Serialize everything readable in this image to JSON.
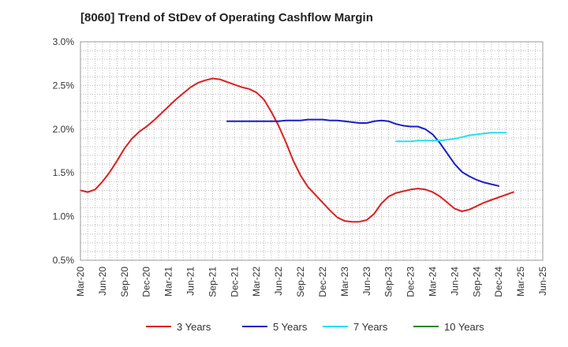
{
  "chart_data": {
    "type": "line",
    "title": "[8060]  Trend of StDev of Operating Cashflow Margin",
    "xlabel": "",
    "ylabel": "",
    "ylim": [
      0.5,
      3.0
    ],
    "y_ticks": [
      0.5,
      1.0,
      1.5,
      2.0,
      2.5,
      3.0
    ],
    "y_tick_labels": [
      "0.5%",
      "1.0%",
      "1.5%",
      "2.0%",
      "2.5%",
      "3.0%"
    ],
    "x_tick_labels": [
      "Mar-20",
      "Jun-20",
      "Sep-20",
      "Dec-20",
      "Mar-21",
      "Jun-21",
      "Sep-21",
      "Dec-21",
      "Mar-22",
      "Jun-22",
      "Sep-22",
      "Dec-22",
      "Mar-23",
      "Jun-23",
      "Sep-23",
      "Dec-23",
      "Mar-24",
      "Jun-24",
      "Sep-24",
      "Dec-24",
      "Mar-25",
      "Jun-25"
    ],
    "grid": true,
    "legend_position": "bottom",
    "series": [
      {
        "name": "3 Years",
        "color": "#dd1f1f",
        "points": [
          [
            "Mar-20",
            1.3
          ],
          [
            "Apr-20",
            1.28
          ],
          [
            "May-20",
            1.31
          ],
          [
            "Jun-20",
            1.4
          ],
          [
            "Jul-20",
            1.51
          ],
          [
            "Aug-20",
            1.64
          ],
          [
            "Sep-20",
            1.78
          ],
          [
            "Oct-20",
            1.89
          ],
          [
            "Nov-20",
            1.97
          ],
          [
            "Dec-20",
            2.03
          ],
          [
            "Jan-21",
            2.1
          ],
          [
            "Feb-21",
            2.18
          ],
          [
            "Mar-21",
            2.26
          ],
          [
            "Apr-21",
            2.34
          ],
          [
            "May-21",
            2.41
          ],
          [
            "Jun-21",
            2.48
          ],
          [
            "Jul-21",
            2.53
          ],
          [
            "Aug-21",
            2.56
          ],
          [
            "Sep-21",
            2.58
          ],
          [
            "Oct-21",
            2.57
          ],
          [
            "Nov-21",
            2.54
          ],
          [
            "Dec-21",
            2.51
          ],
          [
            "Jan-22",
            2.48
          ],
          [
            "Feb-22",
            2.46
          ],
          [
            "Mar-22",
            2.42
          ],
          [
            "Apr-22",
            2.34
          ],
          [
            "May-22",
            2.2
          ],
          [
            "Jun-22",
            2.04
          ],
          [
            "Jul-22",
            1.85
          ],
          [
            "Aug-22",
            1.64
          ],
          [
            "Sep-22",
            1.47
          ],
          [
            "Oct-22",
            1.34
          ],
          [
            "Nov-22",
            1.25
          ],
          [
            "Dec-22",
            1.16
          ],
          [
            "Jan-23",
            1.07
          ],
          [
            "Feb-23",
            0.99
          ],
          [
            "Mar-23",
            0.95
          ],
          [
            "Apr-23",
            0.94
          ],
          [
            "May-23",
            0.94
          ],
          [
            "Jun-23",
            0.96
          ],
          [
            "Jul-23",
            1.03
          ],
          [
            "Aug-23",
            1.15
          ],
          [
            "Sep-23",
            1.23
          ],
          [
            "Oct-23",
            1.27
          ],
          [
            "Nov-23",
            1.29
          ],
          [
            "Dec-23",
            1.31
          ],
          [
            "Jan-24",
            1.32
          ],
          [
            "Feb-24",
            1.31
          ],
          [
            "Mar-24",
            1.28
          ],
          [
            "Apr-24",
            1.23
          ],
          [
            "May-24",
            1.16
          ],
          [
            "Jun-24",
            1.09
          ],
          [
            "Jul-24",
            1.06
          ],
          [
            "Aug-24",
            1.08
          ],
          [
            "Sep-24",
            1.12
          ],
          [
            "Oct-24",
            1.16
          ],
          [
            "Nov-24",
            1.19
          ],
          [
            "Dec-24",
            1.22
          ],
          [
            "Jan-25",
            1.25
          ],
          [
            "Feb-25",
            1.28
          ]
        ]
      },
      {
        "name": "5 Years",
        "color": "#1a1ec8",
        "points": [
          [
            "Nov-21",
            2.09
          ],
          [
            "Dec-21",
            2.09
          ],
          [
            "Jan-22",
            2.09
          ],
          [
            "Feb-22",
            2.09
          ],
          [
            "Mar-22",
            2.09
          ],
          [
            "Apr-22",
            2.09
          ],
          [
            "May-22",
            2.09
          ],
          [
            "Jun-22",
            2.09
          ],
          [
            "Jul-22",
            2.1
          ],
          [
            "Aug-22",
            2.1
          ],
          [
            "Sep-22",
            2.1
          ],
          [
            "Oct-22",
            2.11
          ],
          [
            "Nov-22",
            2.11
          ],
          [
            "Dec-22",
            2.11
          ],
          [
            "Jan-23",
            2.1
          ],
          [
            "Feb-23",
            2.1
          ],
          [
            "Mar-23",
            2.09
          ],
          [
            "Apr-23",
            2.08
          ],
          [
            "May-23",
            2.07
          ],
          [
            "Jun-23",
            2.07
          ],
          [
            "Jul-23",
            2.09
          ],
          [
            "Aug-23",
            2.1
          ],
          [
            "Sep-23",
            2.09
          ],
          [
            "Oct-23",
            2.06
          ],
          [
            "Nov-23",
            2.04
          ],
          [
            "Dec-23",
            2.03
          ],
          [
            "Jan-24",
            2.03
          ],
          [
            "Feb-24",
            2.0
          ],
          [
            "Mar-24",
            1.94
          ],
          [
            "Apr-24",
            1.84
          ],
          [
            "May-24",
            1.72
          ],
          [
            "Jun-24",
            1.6
          ],
          [
            "Jul-24",
            1.51
          ],
          [
            "Aug-24",
            1.46
          ],
          [
            "Sep-24",
            1.42
          ],
          [
            "Oct-24",
            1.39
          ],
          [
            "Nov-24",
            1.37
          ],
          [
            "Dec-24",
            1.35
          ]
        ]
      },
      {
        "name": "7 Years",
        "color": "#22e0f0",
        "points": [
          [
            "Oct-23",
            1.86
          ],
          [
            "Nov-23",
            1.86
          ],
          [
            "Dec-23",
            1.86
          ],
          [
            "Jan-24",
            1.87
          ],
          [
            "Feb-24",
            1.87
          ],
          [
            "Mar-24",
            1.87
          ],
          [
            "Apr-24",
            1.87
          ],
          [
            "May-24",
            1.88
          ],
          [
            "Jun-24",
            1.89
          ],
          [
            "Jul-24",
            1.91
          ],
          [
            "Aug-24",
            1.93
          ],
          [
            "Sep-24",
            1.94
          ],
          [
            "Oct-24",
            1.95
          ],
          [
            "Nov-24",
            1.96
          ],
          [
            "Dec-24",
            1.96
          ],
          [
            "Jan-25",
            1.96
          ]
        ]
      },
      {
        "name": "10 Years",
        "color": "#1e8a1e",
        "points": []
      }
    ]
  }
}
